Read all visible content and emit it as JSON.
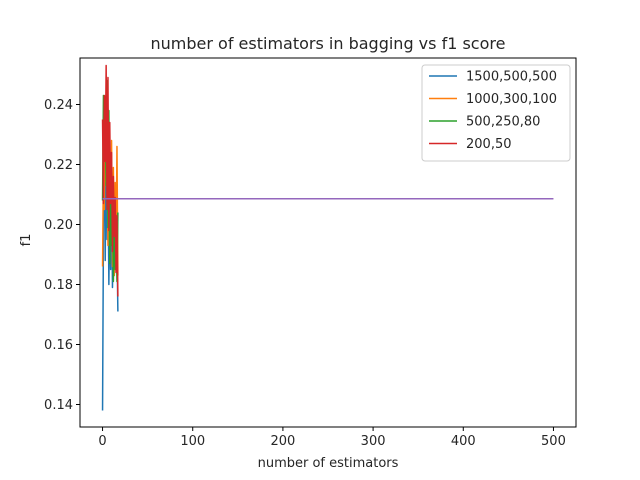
{
  "chart_data": {
    "type": "line",
    "title": "number of estimators in bagging vs f1 score",
    "xlabel": "number of estimators",
    "ylabel": "f1",
    "xlim": [
      -25,
      525
    ],
    "ylim": [
      0.1325,
      0.2555
    ],
    "xticks": [
      0,
      100,
      200,
      300,
      400,
      500
    ],
    "yticks": [
      0.14,
      0.16,
      0.18,
      0.2,
      0.22,
      0.24
    ],
    "ytick_labels": [
      "0.14",
      "0.16",
      "0.18",
      "0.20",
      "0.22",
      "0.24"
    ],
    "legend": {
      "placement": "top-right"
    },
    "series": [
      {
        "name": "1500,500,500",
        "color": "#1f77b4",
        "x": [
          0,
          1,
          2,
          3,
          4,
          5,
          6,
          7,
          8,
          9,
          10,
          11,
          12,
          13,
          14,
          15,
          16,
          17
        ],
        "y": [
          0.138,
          0.198,
          0.241,
          0.188,
          0.236,
          0.195,
          0.219,
          0.18,
          0.208,
          0.185,
          0.216,
          0.179,
          0.205,
          0.183,
          0.197,
          0.185,
          0.192,
          0.171
        ]
      },
      {
        "name": "1000,300,100",
        "color": "#ff7f0e",
        "x": [
          0,
          1,
          2,
          3,
          4,
          5,
          6,
          7,
          8,
          9,
          10,
          11,
          12,
          13,
          14,
          15,
          16,
          17
        ],
        "y": [
          0.186,
          0.219,
          0.205,
          0.236,
          0.214,
          0.229,
          0.193,
          0.227,
          0.209,
          0.198,
          0.228,
          0.186,
          0.219,
          0.183,
          0.214,
          0.19,
          0.226,
          0.183
        ]
      },
      {
        "name": "500,250,80",
        "color": "#2ca02c",
        "x": [
          0,
          1,
          2,
          3,
          4,
          5,
          6,
          7,
          8,
          9,
          10,
          11,
          12,
          13,
          14,
          15,
          16,
          17
        ],
        "y": [
          0.208,
          0.243,
          0.223,
          0.24,
          0.213,
          0.248,
          0.199,
          0.238,
          0.187,
          0.219,
          0.193,
          0.212,
          0.181,
          0.202,
          0.185,
          0.198,
          0.181,
          0.204
        ]
      },
      {
        "name": "200,50",
        "color": "#d62728",
        "x": [
          0,
          1,
          2,
          3,
          4,
          5,
          6,
          7,
          8,
          9,
          10,
          11,
          12,
          13,
          14,
          15,
          16,
          17
        ],
        "y": [
          0.235,
          0.207,
          0.243,
          0.221,
          0.253,
          0.205,
          0.249,
          0.198,
          0.234,
          0.207,
          0.224,
          0.191,
          0.216,
          0.196,
          0.209,
          0.184,
          0.203,
          0.176
        ]
      },
      {
        "color": "#9467bd",
        "x": [
          0,
          500
        ],
        "y": [
          0.2086,
          0.2086
        ]
      }
    ]
  }
}
